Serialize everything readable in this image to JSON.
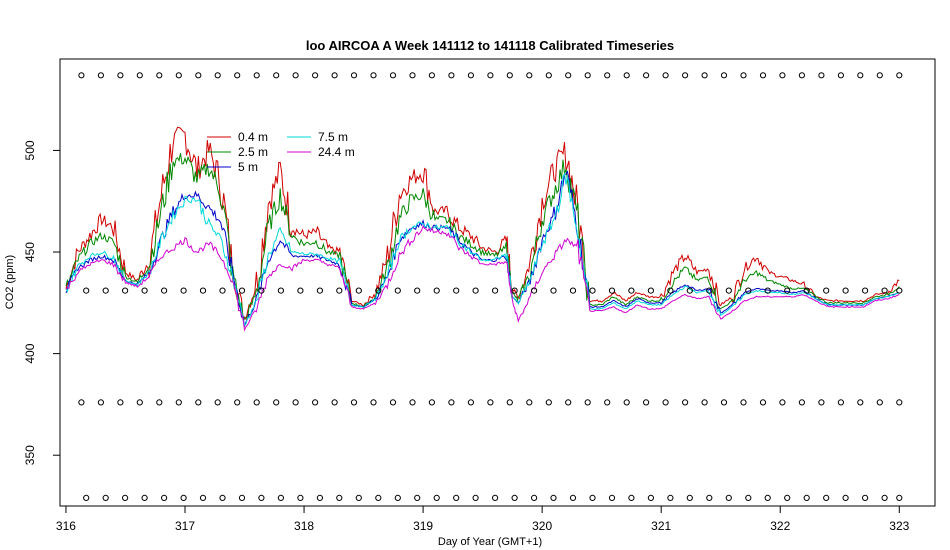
{
  "chart_data": {
    "type": "line",
    "title": "loo AIRCOA A  Week 141112 to 141118  Calibrated Timeseries",
    "xlabel": "Day of Year (GMT+1)",
    "ylabel": "CO2 (ppm)",
    "xlim": [
      315.95,
      323.3
    ],
    "ylim": [
      325,
      545
    ],
    "x_ticks": [
      316,
      317,
      318,
      319,
      320,
      321,
      322,
      323
    ],
    "y_ticks": [
      350,
      400,
      450,
      500
    ],
    "grid": false,
    "legend_position": "top-left",
    "series": [
      {
        "name": "0.4 m",
        "color": "#d00000",
        "x": [
          316.0,
          316.1,
          316.2,
          316.3,
          316.4,
          316.5,
          316.6,
          316.7,
          316.8,
          316.9,
          317.0,
          317.1,
          317.2,
          317.3,
          317.4,
          317.5,
          317.6,
          317.7,
          317.8,
          317.9,
          318.0,
          318.1,
          318.2,
          318.3,
          318.4,
          318.5,
          318.6,
          318.7,
          318.8,
          318.9,
          319.0,
          319.1,
          319.2,
          319.3,
          319.4,
          319.5,
          319.6,
          319.7,
          319.75,
          319.8,
          319.9,
          320.0,
          320.1,
          320.2,
          320.3,
          320.4,
          320.5,
          320.6,
          320.7,
          320.8,
          320.9,
          321.0,
          321.1,
          321.2,
          321.3,
          321.4,
          321.5,
          321.6,
          321.7,
          321.8,
          321.9,
          322.0,
          322.1,
          322.2,
          322.3,
          322.4,
          322.5,
          322.6,
          322.7,
          322.8,
          322.9,
          323.0
        ],
        "y": [
          432,
          450,
          458,
          466,
          462,
          440,
          436,
          446,
          478,
          505,
          508,
          490,
          500,
          485,
          440,
          418,
          434,
          474,
          490,
          462,
          458,
          460,
          452,
          450,
          426,
          424,
          430,
          447,
          478,
          486,
          490,
          470,
          470,
          462,
          458,
          452,
          450,
          456,
          432,
          428,
          445,
          475,
          490,
          500,
          470,
          426,
          426,
          430,
          426,
          430,
          428,
          428,
          440,
          448,
          440,
          442,
          424,
          428,
          442,
          448,
          440,
          438,
          436,
          434,
          428,
          426,
          426,
          426,
          426,
          429,
          430,
          436
        ]
      },
      {
        "name": "2.5 m",
        "color": "#008800",
        "x": [
          316.0,
          316.1,
          316.2,
          316.3,
          316.4,
          316.5,
          316.6,
          316.7,
          316.8,
          316.9,
          317.0,
          317.1,
          317.2,
          317.3,
          317.4,
          317.5,
          317.6,
          317.7,
          317.8,
          317.9,
          318.0,
          318.1,
          318.2,
          318.3,
          318.4,
          318.5,
          318.6,
          318.7,
          318.8,
          318.9,
          319.0,
          319.1,
          319.2,
          319.3,
          319.4,
          319.5,
          319.6,
          319.7,
          319.75,
          319.8,
          319.9,
          320.0,
          320.1,
          320.2,
          320.3,
          320.4,
          320.5,
          320.6,
          320.7,
          320.8,
          320.9,
          321.0,
          321.1,
          321.2,
          321.3,
          321.4,
          321.5,
          321.6,
          321.7,
          321.8,
          321.9,
          322.0,
          322.1,
          322.2,
          322.3,
          322.4,
          322.5,
          322.6,
          322.7,
          322.8,
          322.9,
          323.0
        ],
        "y": [
          432,
          446,
          454,
          458,
          455,
          438,
          435,
          444,
          470,
          495,
          496,
          486,
          492,
          480,
          440,
          416,
          430,
          462,
          478,
          458,
          454,
          455,
          450,
          448,
          425,
          423,
          428,
          442,
          466,
          476,
          478,
          466,
          466,
          458,
          454,
          450,
          448,
          452,
          430,
          426,
          440,
          466,
          480,
          494,
          466,
          424,
          424,
          428,
          424,
          428,
          426,
          426,
          435,
          442,
          436,
          438,
          422,
          426,
          436,
          440,
          436,
          434,
          432,
          432,
          428,
          425,
          425,
          425,
          425,
          428,
          429,
          433
        ]
      },
      {
        "name": "5 m",
        "color": "#0000c8",
        "x": [
          316.0,
          316.1,
          316.2,
          316.3,
          316.4,
          316.5,
          316.6,
          316.7,
          316.8,
          316.9,
          317.0,
          317.1,
          317.2,
          317.3,
          317.4,
          317.5,
          317.6,
          317.7,
          317.8,
          317.9,
          318.0,
          318.1,
          318.2,
          318.3,
          318.4,
          318.5,
          318.6,
          318.7,
          318.8,
          318.9,
          319.0,
          319.1,
          319.2,
          319.3,
          319.4,
          319.5,
          319.6,
          319.7,
          319.75,
          319.8,
          319.9,
          320.0,
          320.1,
          320.2,
          320.3,
          320.4,
          320.5,
          320.6,
          320.7,
          320.8,
          320.9,
          321.0,
          321.1,
          321.2,
          321.3,
          321.4,
          321.5,
          321.6,
          321.7,
          321.8,
          321.9,
          322.0,
          322.1,
          322.2,
          322.3,
          322.4,
          322.5,
          322.6,
          322.7,
          322.8,
          322.9,
          323.0
        ],
        "y": [
          431,
          442,
          446,
          448,
          446,
          436,
          434,
          440,
          456,
          470,
          478,
          478,
          472,
          465,
          440,
          414,
          426,
          446,
          456,
          448,
          448,
          448,
          446,
          444,
          424,
          423,
          427,
          438,
          456,
          462,
          464,
          462,
          462,
          456,
          450,
          446,
          446,
          448,
          428,
          425,
          436,
          456,
          468,
          490,
          462,
          423,
          423,
          426,
          423,
          427,
          425,
          425,
          430,
          434,
          431,
          432,
          420,
          424,
          430,
          432,
          431,
          431,
          430,
          431,
          427,
          424,
          424,
          424,
          424,
          427,
          428,
          430
        ]
      },
      {
        "name": "7.5 m",
        "color": "#00d8d8",
        "x": [
          316.0,
          316.1,
          316.2,
          316.3,
          316.4,
          316.5,
          316.6,
          316.7,
          316.8,
          316.9,
          317.0,
          317.1,
          317.2,
          317.3,
          317.4,
          317.5,
          317.6,
          317.7,
          317.8,
          317.9,
          318.0,
          318.1,
          318.2,
          318.3,
          318.4,
          318.5,
          318.6,
          318.7,
          318.8,
          318.9,
          319.0,
          319.1,
          319.2,
          319.3,
          319.4,
          319.5,
          319.6,
          319.7,
          319.75,
          319.8,
          319.9,
          320.0,
          320.1,
          320.2,
          320.3,
          320.4,
          320.5,
          320.6,
          320.7,
          320.8,
          320.9,
          321.0,
          321.1,
          321.2,
          321.3,
          321.4,
          321.5,
          321.6,
          321.7,
          321.8,
          321.9,
          322.0,
          322.1,
          322.2,
          322.3,
          322.4,
          322.5,
          322.6,
          322.7,
          322.8,
          322.9,
          323.0
        ],
        "y": [
          431,
          443,
          448,
          450,
          447,
          436,
          434,
          440,
          456,
          468,
          476,
          476,
          464,
          456,
          438,
          414,
          426,
          448,
          460,
          450,
          449,
          449,
          447,
          445,
          424,
          423,
          427,
          438,
          456,
          462,
          464,
          462,
          462,
          455,
          450,
          446,
          446,
          449,
          428,
          425,
          436,
          454,
          466,
          488,
          460,
          422,
          422,
          425,
          422,
          426,
          424,
          424,
          429,
          433,
          430,
          431,
          419,
          423,
          429,
          431,
          430,
          430,
          429,
          430,
          427,
          424,
          424,
          424,
          424,
          427,
          428,
          430
        ]
      },
      {
        "name": "24.4 m",
        "color": "#d000d0",
        "x": [
          316.0,
          316.1,
          316.2,
          316.3,
          316.4,
          316.5,
          316.6,
          316.7,
          316.8,
          316.9,
          317.0,
          317.1,
          317.2,
          317.3,
          317.4,
          317.5,
          317.6,
          317.7,
          317.8,
          317.9,
          318.0,
          318.1,
          318.2,
          318.3,
          318.4,
          318.5,
          318.6,
          318.7,
          318.8,
          318.9,
          319.0,
          319.1,
          319.2,
          319.3,
          319.4,
          319.5,
          319.6,
          319.7,
          319.75,
          319.8,
          319.9,
          320.0,
          320.1,
          320.2,
          320.3,
          320.4,
          320.5,
          320.6,
          320.7,
          320.8,
          320.9,
          321.0,
          321.1,
          321.2,
          321.3,
          321.4,
          321.5,
          321.6,
          321.7,
          321.8,
          321.9,
          322.0,
          322.1,
          322.2,
          322.3,
          322.4,
          322.5,
          322.6,
          322.7,
          322.8,
          322.9,
          323.0
        ],
        "y": [
          431,
          440,
          444,
          446,
          444,
          435,
          433,
          438,
          448,
          452,
          456,
          450,
          454,
          448,
          436,
          412,
          422,
          438,
          444,
          442,
          446,
          446,
          444,
          442,
          423,
          422,
          425,
          434,
          448,
          456,
          462,
          460,
          460,
          452,
          448,
          444,
          444,
          445,
          426,
          416,
          428,
          440,
          448,
          456,
          452,
          421,
          421,
          423,
          420,
          424,
          422,
          422,
          426,
          429,
          427,
          428,
          417,
          421,
          426,
          428,
          428,
          428,
          428,
          429,
          426,
          423,
          423,
          423,
          423,
          426,
          427,
          429
        ]
      }
    ],
    "calibration_markers": {
      "shape": "open-circle",
      "x_start": 316.13,
      "x_end": 323.0,
      "count": 43,
      "levels": [
        537,
        431,
        376,
        329
      ]
    }
  }
}
